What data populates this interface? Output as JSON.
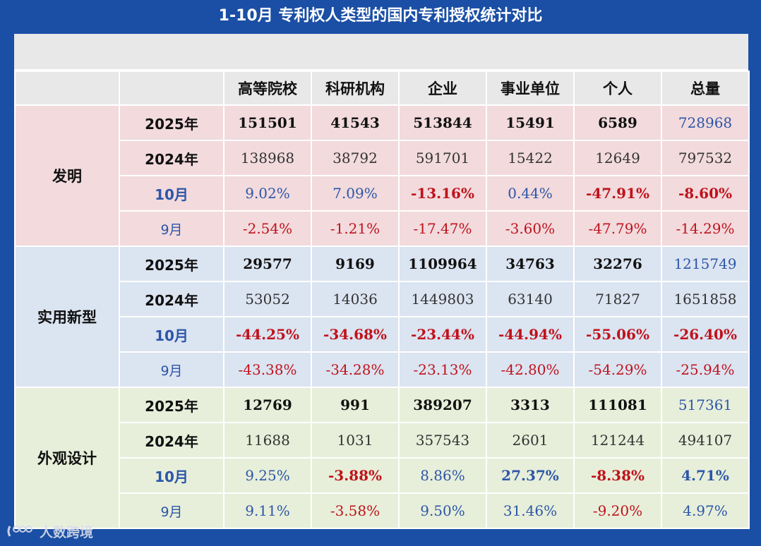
{
  "title": "1-10月  专利权人类型的国内专利授权统计对比",
  "header": [
    "高等院校",
    "科研机构",
    "企业",
    "事业单位",
    "个人",
    "总量"
  ],
  "groups": [
    {
      "name": "发明",
      "rows": [
        {
          "label": "2025年",
          "values": [
            "151501",
            "41543",
            "513844",
            "15491",
            "6589",
            "728968"
          ]
        },
        {
          "label": "2024年",
          "values": [
            "138968",
            "38792",
            "591701",
            "15422",
            "12649",
            "797532"
          ]
        },
        {
          "label": "10月",
          "values": [
            "9.02%",
            "7.09%",
            "-13.16%",
            "0.44%",
            "-47.91%",
            "-8.60%"
          ]
        },
        {
          "label": "9月",
          "values": [
            "-2.54%",
            "-1.21%",
            "-17.47%",
            "-3.60%",
            "-47.79%",
            "-14.29%"
          ]
        }
      ]
    },
    {
      "name": "实用新型",
      "rows": [
        {
          "label": "2025年",
          "values": [
            "29577",
            "9169",
            "1109964",
            "34763",
            "32276",
            "1215749"
          ]
        },
        {
          "label": "2024年",
          "values": [
            "53052",
            "14036",
            "1449803",
            "63140",
            "71827",
            "1651858"
          ]
        },
        {
          "label": "10月",
          "values": [
            "-44.25%",
            "-34.68%",
            "-23.44%",
            "-44.94%",
            "-55.06%",
            "-26.40%"
          ]
        },
        {
          "label": "9月",
          "values": [
            "-43.38%",
            "-34.28%",
            "-23.13%",
            "-42.80%",
            "-54.29%",
            "-25.94%"
          ]
        }
      ]
    },
    {
      "name": "外观设计",
      "rows": [
        {
          "label": "2025年",
          "values": [
            "12769",
            "991",
            "389207",
            "3313",
            "111081",
            "517361"
          ]
        },
        {
          "label": "2024年",
          "values": [
            "11688",
            "1031",
            "357543",
            "2601",
            "121244",
            "494107"
          ]
        },
        {
          "label": "10月",
          "values": [
            "9.25%",
            "-3.88%",
            "8.86%",
            "27.37%",
            "-8.38%",
            "4.71%"
          ]
        },
        {
          "label": "9月",
          "values": [
            "9.11%",
            "-3.58%",
            "9.50%",
            "31.46%",
            "-9.20%",
            "4.97%"
          ]
        }
      ]
    }
  ],
  "watermark": "人数跨境",
  "colors": {
    "background": "#1b4fa5",
    "header_bg": "#e8e8e8",
    "invention_bg": "#f2dadd",
    "utility_bg": "#dbe4f1",
    "design_bg": "#e7efda",
    "positive": "#2d56a7",
    "negative": "#c0121b"
  }
}
